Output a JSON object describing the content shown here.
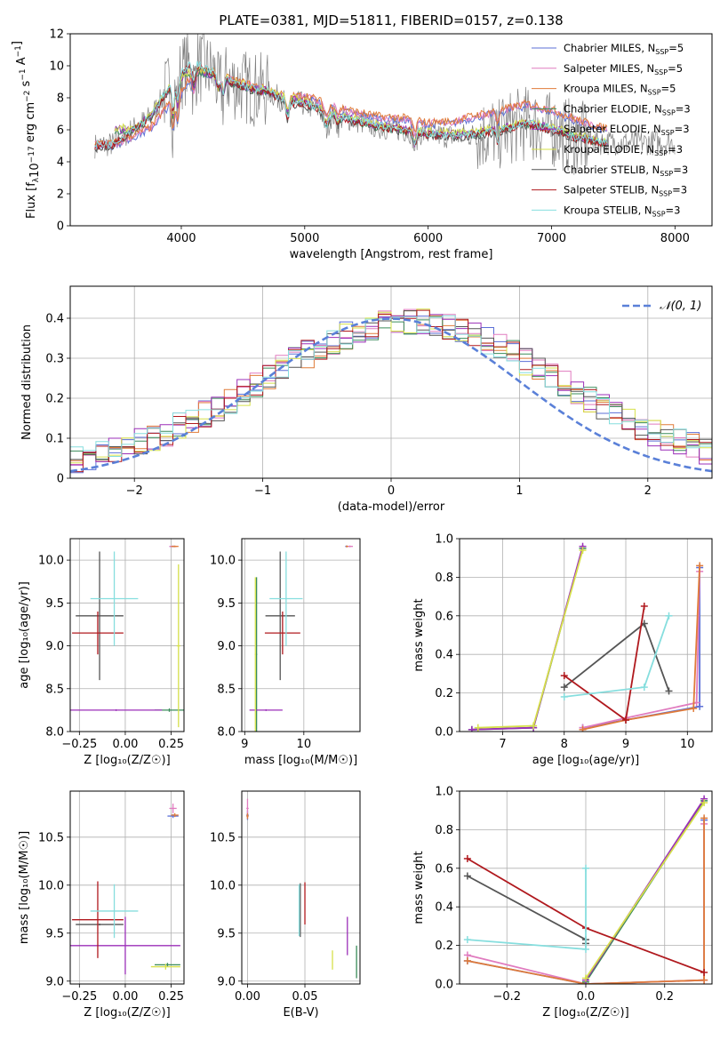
{
  "title": "PLATE=0381, MJD=51811, FIBERID=0157, z=0.138",
  "models": [
    {
      "name": "Chabrier MILES, N",
      "sub": "SSP",
      "n": "=5",
      "color": "#5b6fd6"
    },
    {
      "name": "Salpeter MILES, N",
      "sub": "SSP",
      "n": "=5",
      "color": "#e07bbf"
    },
    {
      "name": "Kroupa MILES, N",
      "sub": "SSP",
      "n": "=5",
      "color": "#e07b39"
    },
    {
      "name": "Chabrier ELODIE, N",
      "sub": "SSP",
      "n": "=3",
      "color": "#3a8c5a"
    },
    {
      "name": "Salpeter ELODIE, N",
      "sub": "SSP",
      "n": "=3",
      "color": "#9b2fb8"
    },
    {
      "name": "Kroupa ELODIE, N",
      "sub": "SSP",
      "n": "=3",
      "color": "#d6e04a"
    },
    {
      "name": "Chabrier STELIB, N",
      "sub": "SSP",
      "n": "=3",
      "color": "#555555"
    },
    {
      "name": "Salpeter STELIB, N",
      "sub": "SSP",
      "n": "=3",
      "color": "#b0191e"
    },
    {
      "name": "Kroupa STELIB, N",
      "sub": "SSP",
      "n": "=3",
      "color": "#86dede"
    }
  ],
  "chart_data": [
    {
      "type": "line",
      "xlabel": "wavelength [Angstrom, rest frame]",
      "ylabel": "Flux [f",
      "ylabel_parts": [
        "Flux [f",
        "λ",
        "10",
        "−17",
        " erg cm",
        "−2",
        " s",
        "−1",
        " A",
        "−1",
        "]"
      ],
      "xlim": [
        3100,
        8300
      ],
      "ylim": [
        0,
        12
      ],
      "xticks": [
        4000,
        5000,
        6000,
        7000,
        8000
      ],
      "yticks": [
        0,
        2,
        4,
        6,
        8,
        10,
        12
      ],
      "data_color": "#808080",
      "model_x": [
        3300,
        3450,
        3600,
        3750,
        3900,
        3980,
        4100,
        4250,
        4400,
        4550,
        4700,
        4860,
        5000,
        5200,
        5400,
        5600,
        5800,
        6000,
        6200,
        6400,
        6600,
        6800,
        7000,
        7200,
        7400
      ],
      "models_y": {
        "miles": [
          5.0,
          5.0,
          5.5,
          6.0,
          7.5,
          8.0,
          9.5,
          9.5,
          9.0,
          8.7,
          8.4,
          7.9,
          8.0,
          7.5,
          7.0,
          6.7,
          6.6,
          6.3,
          6.4,
          6.8,
          7.1,
          7.5,
          7.1,
          6.5,
          6.0
        ],
        "elodie": [
          null,
          null,
          5.8,
          6.6,
          8.3,
          9.0,
          9.5,
          9.2,
          8.8,
          8.4,
          8.2,
          7.8,
          7.5,
          6.9,
          6.4,
          6.0,
          5.8,
          5.6,
          5.5,
          5.6,
          5.9,
          6.2,
          5.9,
          5.4,
          5.0
        ],
        "stelib": [
          5.0,
          5.1,
          6.0,
          6.8,
          8.6,
          9.5,
          10.2,
          9.6,
          9.0,
          8.6,
          8.4,
          7.7,
          7.6,
          7.0,
          6.6,
          6.2,
          6.0,
          5.7,
          5.6,
          5.7,
          6.0,
          6.4,
          6.0,
          5.5,
          5.2
        ]
      },
      "legend": "top-right"
    },
    {
      "type": "histogram",
      "xlabel": "(data-model)/error",
      "ylabel": "Normed distribution",
      "xlim": [
        -2.5,
        2.5
      ],
      "ylim": [
        0,
        0.48
      ],
      "xticks": [
        -2,
        -1,
        0,
        1,
        2
      ],
      "yticks": [
        0.0,
        0.1,
        0.2,
        0.3,
        0.4
      ],
      "bin_width": 0.1,
      "bins_start": -2.5,
      "reference_curve": {
        "name": "𝒩(0, 1)",
        "mean": 0,
        "sigma": 1,
        "color": "#5a80d8"
      },
      "legend": "top-right"
    },
    {
      "type": "scatter",
      "xlabel": "Z [log₁₀(Z/Z☉)]",
      "ylabel": "age  [log₁₀(age/yr)]",
      "xlim": [
        -0.3,
        0.32
      ],
      "ylim": [
        8.0,
        10.25
      ],
      "xticks": [
        -0.25,
        0.0,
        0.25
      ],
      "yticks": [
        8.0,
        8.5,
        9.0,
        9.5,
        10.0
      ]
    },
    {
      "type": "scatter",
      "xlabel": "mass [log₁₀(M/M☉)]",
      "ylabel": "",
      "xlim": [
        8.95,
        10.95
      ],
      "ylim": [
        8.0,
        10.25
      ],
      "xticks": [
        9,
        10
      ],
      "yticks": [
        8.0,
        8.5,
        9.0,
        9.5,
        10.0
      ]
    },
    {
      "type": "line",
      "xlabel": "age  [log₁₀(age/yr)]",
      "ylabel": "mass weight",
      "xlim": [
        6.3,
        10.4
      ],
      "ylim": [
        0,
        1
      ],
      "xticks": [
        7,
        8,
        9,
        10
      ],
      "yticks": [
        0.0,
        0.2,
        0.4,
        0.6,
        0.8,
        1.0
      ],
      "series": [
        {
          "model": 0,
          "x": [
            8.3,
            9.0,
            10.2,
            10.2
          ],
          "y": [
            0.02,
            0.06,
            0.13,
            0.85
          ]
        },
        {
          "model": 1,
          "x": [
            8.3,
            9.0,
            10.15,
            10.2
          ],
          "y": [
            0.02,
            0.07,
            0.15,
            0.83
          ]
        },
        {
          "model": 2,
          "x": [
            8.3,
            9.0,
            10.1,
            10.2
          ],
          "y": [
            0.01,
            0.06,
            0.12,
            0.86
          ]
        },
        {
          "model": 3,
          "x": [
            6.5,
            7.5,
            8.3
          ],
          "y": [
            0.01,
            0.02,
            0.95
          ]
        },
        {
          "model": 4,
          "x": [
            6.5,
            7.5,
            8.3
          ],
          "y": [
            0.01,
            0.02,
            0.96
          ]
        },
        {
          "model": 5,
          "x": [
            6.6,
            7.5,
            8.3
          ],
          "y": [
            0.02,
            0.03,
            0.94
          ]
        },
        {
          "model": 6,
          "x": [
            8.0,
            9.3,
            9.7
          ],
          "y": [
            0.23,
            0.56,
            0.21
          ]
        },
        {
          "model": 7,
          "x": [
            8.0,
            9.0,
            9.3
          ],
          "y": [
            0.29,
            0.06,
            0.65
          ]
        },
        {
          "model": 8,
          "x": [
            8.0,
            9.3,
            9.7
          ],
          "y": [
            0.18,
            0.23,
            0.6
          ]
        }
      ]
    },
    {
      "type": "scatter",
      "xlabel": "Z [log₁₀(Z/Z☉)]",
      "ylabel": "mass [log₁₀(M/M☉)]",
      "xlim": [
        -0.3,
        0.32
      ],
      "ylim": [
        8.97,
        10.98
      ],
      "xticks": [
        -0.25,
        0.0,
        0.25
      ],
      "yticks": [
        9.0,
        9.5,
        10.0,
        10.5
      ]
    },
    {
      "type": "scatter",
      "xlabel": "E(B-V)",
      "ylabel": "",
      "xlim": [
        -0.005,
        0.098
      ],
      "ylim": [
        8.97,
        10.98
      ],
      "xticks": [
        0.0,
        0.05
      ],
      "yticks": [
        9.0,
        9.5,
        10.0,
        10.5
      ]
    },
    {
      "type": "line",
      "xlabel": "Z [log₁₀(Z/Z☉)]",
      "ylabel": "mass weight",
      "xlim": [
        -0.32,
        0.32
      ],
      "ylim": [
        0,
        1
      ],
      "xticks": [
        -0.2,
        0.0,
        0.2
      ],
      "yticks": [
        0.0,
        0.2,
        0.4,
        0.6,
        0.8,
        1.0
      ],
      "series": [
        {
          "model": 0,
          "x": [
            -0.3,
            0.0,
            0.3,
            0.3
          ],
          "y": [
            0.12,
            0.0,
            0.02,
            0.85
          ]
        },
        {
          "model": 1,
          "x": [
            -0.3,
            0.0,
            0.3,
            0.3
          ],
          "y": [
            0.15,
            0.0,
            0.02,
            0.83
          ]
        },
        {
          "model": 2,
          "x": [
            -0.3,
            0.0,
            0.3,
            0.3
          ],
          "y": [
            0.12,
            0.0,
            0.02,
            0.86
          ]
        },
        {
          "model": 3,
          "x": [
            0.0,
            0.3
          ],
          "y": [
            0.01,
            0.95
          ]
        },
        {
          "model": 4,
          "x": [
            0.0,
            0.3
          ],
          "y": [
            0.02,
            0.96
          ]
        },
        {
          "model": 5,
          "x": [
            0.0,
            0.3
          ],
          "y": [
            0.03,
            0.94
          ]
        },
        {
          "model": 6,
          "x": [
            -0.3,
            0.0,
            0.0
          ],
          "y": [
            0.56,
            0.23,
            0.21
          ]
        },
        {
          "model": 7,
          "x": [
            -0.3,
            0.0,
            0.3
          ],
          "y": [
            0.65,
            0.29,
            0.06
          ]
        },
        {
          "model": 8,
          "x": [
            -0.3,
            0.0,
            0.0
          ],
          "y": [
            0.23,
            0.18,
            0.6
          ]
        }
      ]
    }
  ],
  "points_zage": [
    {
      "model": 0,
      "x": 0.26,
      "y": 10.16,
      "xe": 0.02,
      "ye": 0.01
    },
    {
      "model": 1,
      "x": 0.26,
      "y": 10.16,
      "xe": 0.02,
      "ye": 0.01
    },
    {
      "model": 2,
      "x": 0.27,
      "y": 10.16,
      "xe": 0.02,
      "ye": 0.01
    },
    {
      "model": 3,
      "x": 0.24,
      "y": 8.25,
      "xe": 0.08,
      "ye": 0.02
    },
    {
      "model": 4,
      "x": -0.05,
      "y": 8.25,
      "xe": 0.25,
      "ye": 0.01
    },
    {
      "model": 5,
      "x": 0.29,
      "y": 9.0,
      "xe": 0.01,
      "ye": 0.95
    },
    {
      "model": 6,
      "x": -0.14,
      "y": 9.35,
      "xe": 0.13,
      "ye": 0.75
    },
    {
      "model": 7,
      "x": -0.15,
      "y": 9.15,
      "xe": 0.14,
      "ye": 0.25
    },
    {
      "model": 8,
      "x": -0.06,
      "y": 9.55,
      "xe": 0.13,
      "ye": 0.55
    }
  ],
  "points_massage": [
    {
      "model": 0,
      "x": 10.72,
      "y": 10.16,
      "xe": 0.02,
      "ye": 0.01
    },
    {
      "model": 1,
      "x": 10.78,
      "y": 10.16,
      "xe": 0.05,
      "ye": 0.01
    },
    {
      "model": 2,
      "x": 10.73,
      "y": 10.16,
      "xe": 0.02,
      "ye": 0.01
    },
    {
      "model": 3,
      "x": 9.2,
      "y": 8.9,
      "xe": 0.01,
      "ye": 0.9
    },
    {
      "model": 4,
      "x": 9.36,
      "y": 8.25,
      "xe": 0.28,
      "ye": 0.01
    },
    {
      "model": 5,
      "x": 9.18,
      "y": 8.9,
      "xe": 0.01,
      "ye": 0.9
    },
    {
      "model": 6,
      "x": 9.6,
      "y": 9.35,
      "xe": 0.25,
      "ye": 0.75
    },
    {
      "model": 7,
      "x": 9.64,
      "y": 9.15,
      "xe": 0.3,
      "ye": 0.25
    },
    {
      "model": 8,
      "x": 9.7,
      "y": 9.55,
      "xe": 0.28,
      "ye": 0.55
    }
  ],
  "points_zmass": [
    {
      "model": 0,
      "x": 0.26,
      "y": 10.72,
      "xe": 0.03,
      "ye": 0.02
    },
    {
      "model": 1,
      "x": 0.26,
      "y": 10.8,
      "xe": 0.02,
      "ye": 0.05
    },
    {
      "model": 2,
      "x": 0.27,
      "y": 10.73,
      "xe": 0.02,
      "ye": 0.02
    },
    {
      "model": 3,
      "x": 0.23,
      "y": 9.17,
      "xe": 0.07,
      "ye": 0.02
    },
    {
      "model": 4,
      "x": 0.0,
      "y": 9.37,
      "xe": 0.3,
      "ye": 0.3
    },
    {
      "model": 5,
      "x": 0.22,
      "y": 9.15,
      "xe": 0.08,
      "ye": 0.03
    },
    {
      "model": 6,
      "x": -0.14,
      "y": 9.59,
      "xe": 0.13,
      "ye": 0.01
    },
    {
      "model": 7,
      "x": -0.15,
      "y": 9.64,
      "xe": 0.14,
      "ye": 0.4
    },
    {
      "model": 8,
      "x": -0.06,
      "y": 9.73,
      "xe": 0.13,
      "ye": 0.28
    }
  ],
  "points_ebvmass": [
    {
      "model": 0,
      "x": 0.0,
      "y": 10.73,
      "xe": 0.001,
      "ye": 0.05
    },
    {
      "model": 1,
      "x": 0.0,
      "y": 10.8,
      "xe": 0.001,
      "ye": 0.1
    },
    {
      "model": 2,
      "x": 0.0,
      "y": 10.72,
      "xe": 0.001,
      "ye": 0.03
    },
    {
      "model": 3,
      "x": 0.095,
      "y": 9.2,
      "xe": 0.0,
      "ye": 0.17
    },
    {
      "model": 4,
      "x": 0.087,
      "y": 9.47,
      "xe": 0.0,
      "ye": 0.2
    },
    {
      "model": 5,
      "x": 0.074,
      "y": 9.22,
      "xe": 0.0,
      "ye": 0.1
    },
    {
      "model": 6,
      "x": 0.046,
      "y": 9.74,
      "xe": 0.0,
      "ye": 0.28
    },
    {
      "model": 7,
      "x": 0.05,
      "y": 9.81,
      "xe": 0.0,
      "ye": 0.22
    },
    {
      "model": 8,
      "x": 0.045,
      "y": 9.74,
      "xe": 0.0,
      "ye": 0.27
    }
  ]
}
